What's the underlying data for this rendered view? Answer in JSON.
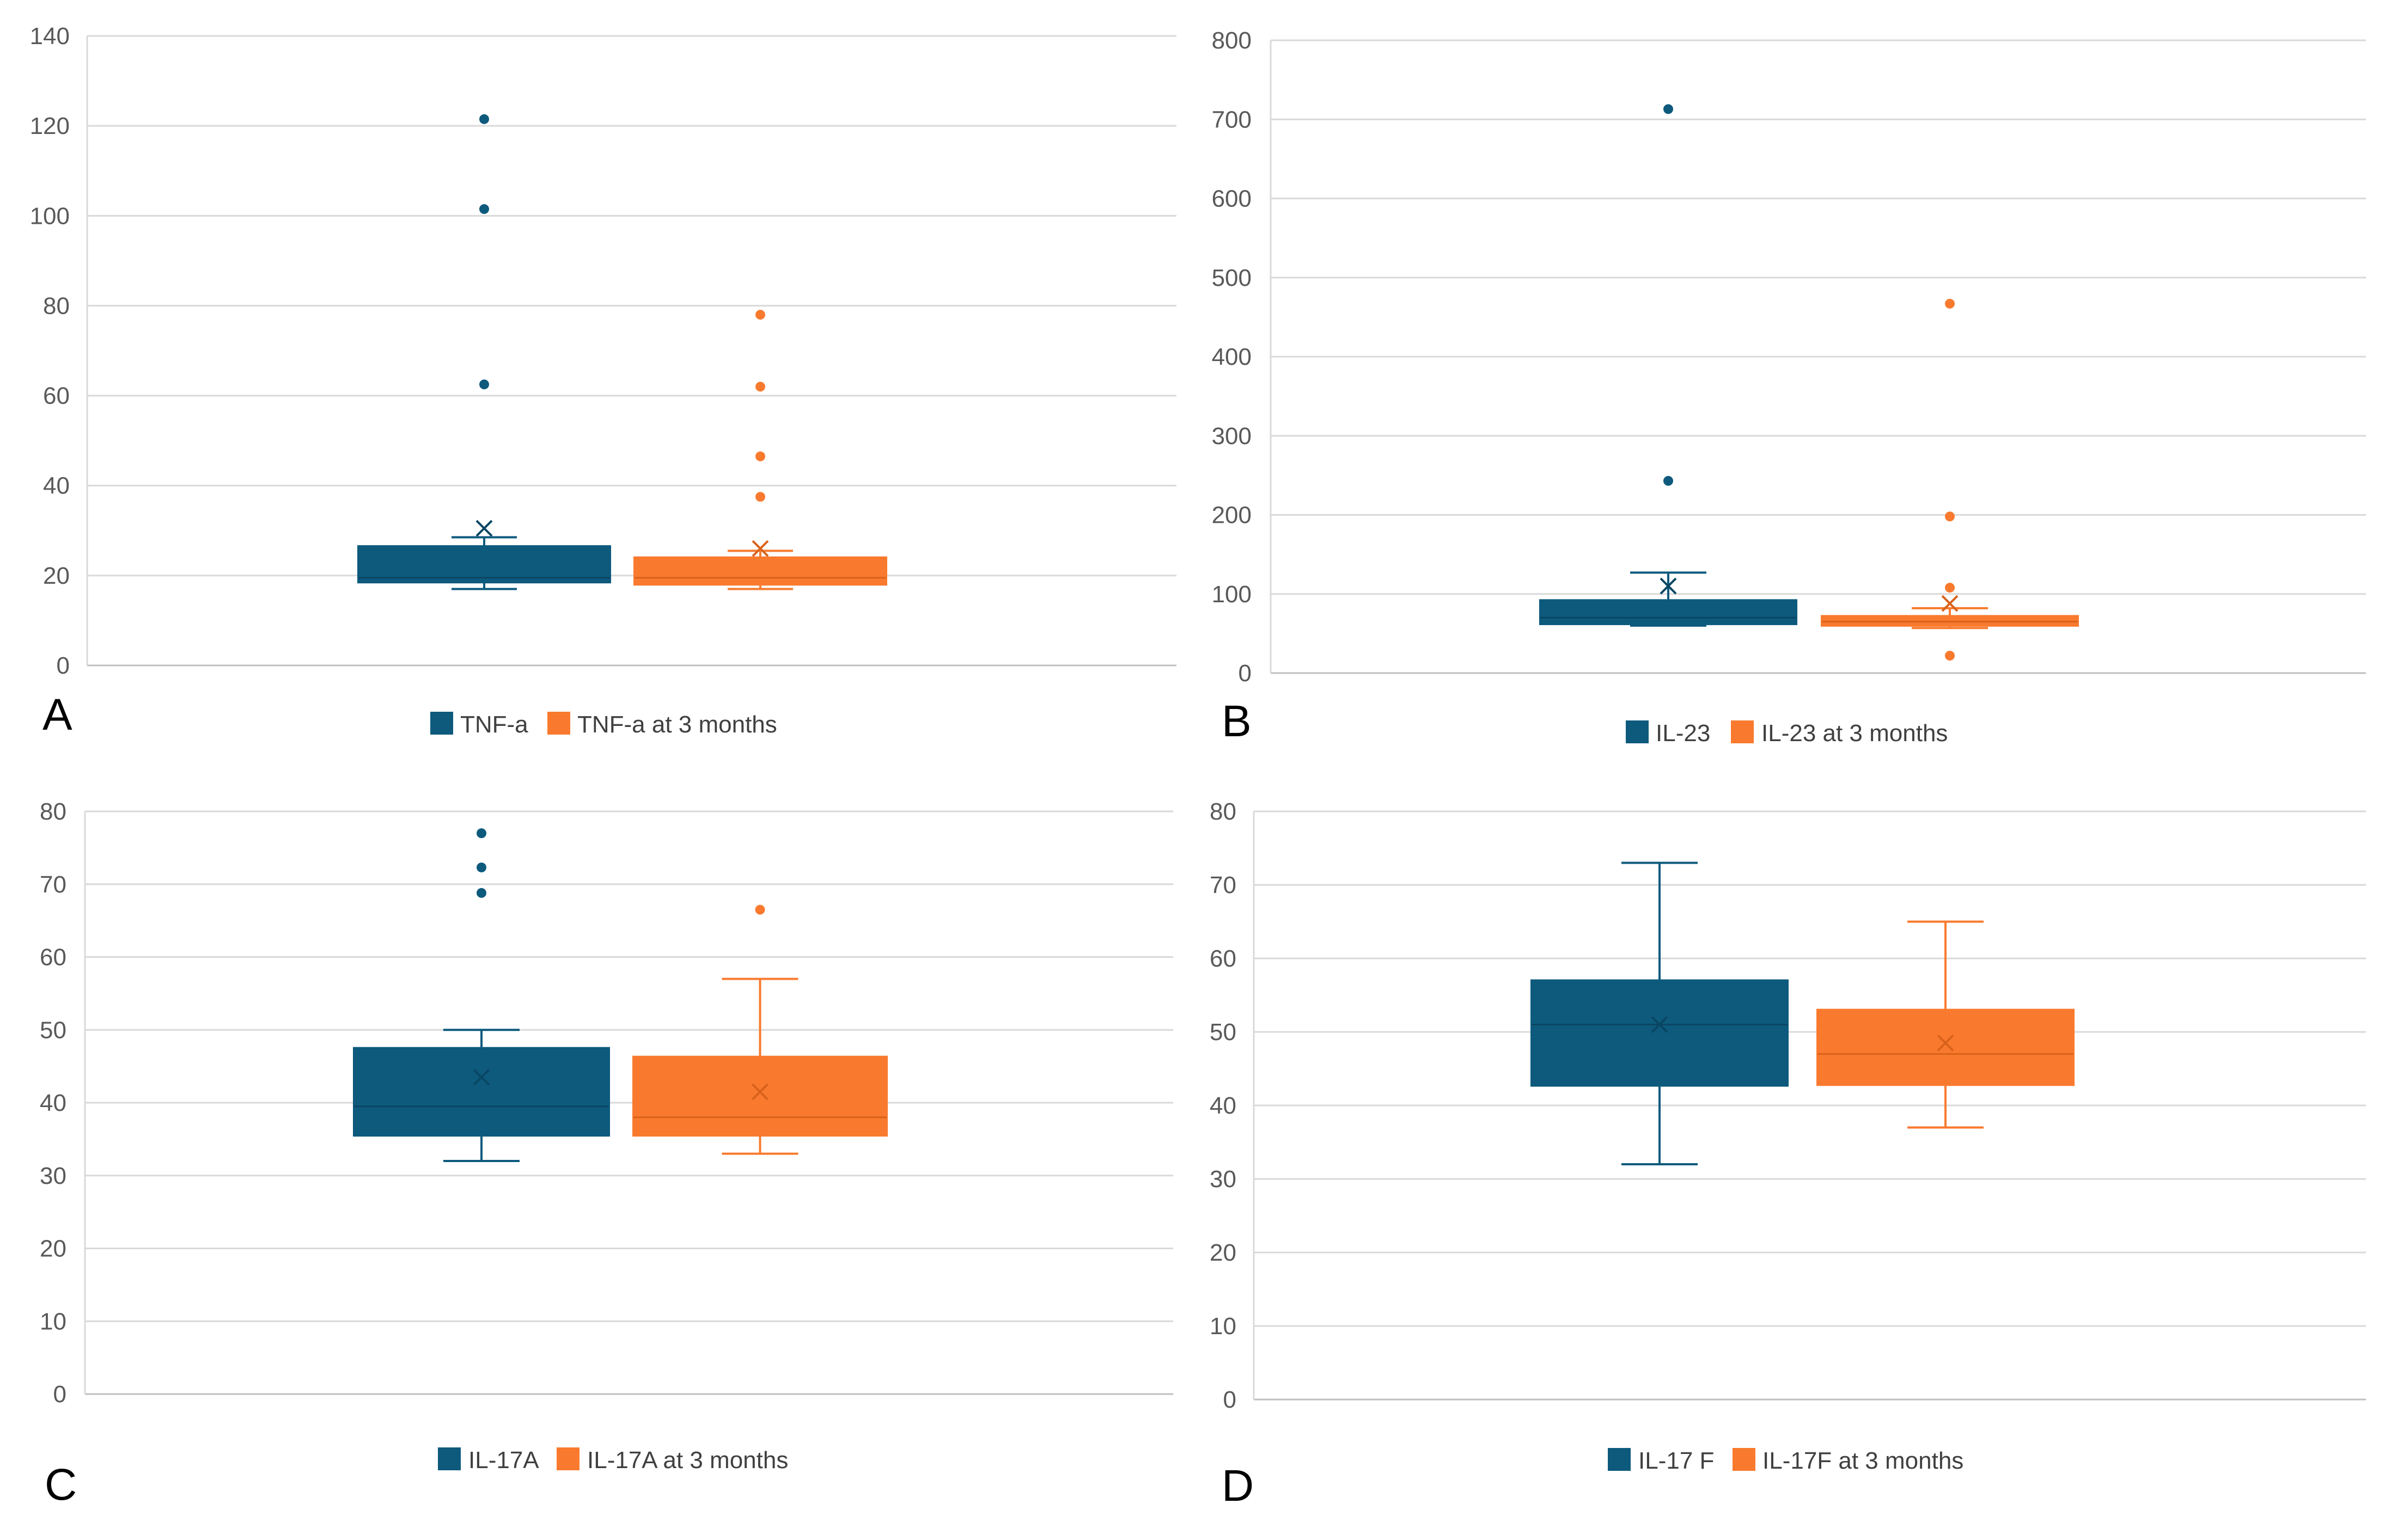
{
  "colors": {
    "series1": "#0d5a7d",
    "series2": "#f97a2e",
    "grid": "#d9d9d9",
    "axis": "#bfbfbf"
  },
  "chart_data": [
    {
      "panel": "A",
      "type": "box",
      "yticks": [
        "0",
        "20",
        "40",
        "60",
        "80",
        "100",
        "120",
        "140"
      ],
      "ylim": [
        0,
        140
      ],
      "series": [
        {
          "name": "TNF-a",
          "whisker_low": 17,
          "q1": 18.5,
          "median": 19.5,
          "q3": 26.5,
          "whisker_high": 28.5,
          "mean": 30.5,
          "outliers": [
            62.5,
            101.5,
            121.5
          ]
        },
        {
          "name": "TNF-a at 3 months",
          "whisker_low": 17,
          "q1": 18,
          "median": 19.5,
          "q3": 24,
          "whisker_high": 25.5,
          "mean": 26,
          "outliers": [
            37.5,
            46.5,
            62,
            78
          ]
        }
      ]
    },
    {
      "panel": "B",
      "type": "box",
      "yticks": [
        "0",
        "100",
        "200",
        "300",
        "400",
        "500",
        "600",
        "700",
        "800"
      ],
      "ylim": [
        0,
        800
      ],
      "series": [
        {
          "name": "IL-23",
          "whisker_low": 60,
          "q1": 62,
          "median": 70,
          "q3": 92,
          "whisker_high": 127,
          "mean": 110,
          "outliers": [
            243,
            713
          ]
        },
        {
          "name": "IL-23 at 3 months",
          "whisker_low": 57,
          "q1": 60,
          "median": 65,
          "q3": 72,
          "whisker_high": 82,
          "mean": 88,
          "outliers": [
            22,
            108,
            198,
            467
          ]
        }
      ]
    },
    {
      "panel": "C",
      "type": "box",
      "yticks": [
        "0",
        "10",
        "20",
        "30",
        "40",
        "50",
        "60",
        "70",
        "80"
      ],
      "ylim": [
        0,
        80
      ],
      "series": [
        {
          "name": "IL-17A",
          "whisker_low": 32,
          "q1": 35.5,
          "median": 39.5,
          "q3": 47.5,
          "whisker_high": 50,
          "mean": 43.5,
          "outliers": [
            68.8,
            72.3,
            77
          ]
        },
        {
          "name": "IL-17A at 3 months",
          "whisker_low": 33,
          "q1": 35.5,
          "median": 38,
          "q3": 46.3,
          "whisker_high": 57,
          "mean": 41.5,
          "outliers": [
            66.5
          ]
        }
      ]
    },
    {
      "panel": "D",
      "type": "box",
      "yticks": [
        "0",
        "10",
        "20",
        "30",
        "40",
        "50",
        "60",
        "70",
        "80"
      ],
      "ylim": [
        0,
        80
      ],
      "series": [
        {
          "name": "IL-17 F",
          "whisker_low": 32,
          "q1": 42.7,
          "median": 51,
          "q3": 57,
          "whisker_high": 73,
          "mean": 51,
          "outliers": []
        },
        {
          "name": "IL-17F at 3 months",
          "whisker_low": 37,
          "q1": 42.8,
          "median": 47,
          "q3": 53,
          "whisker_high": 65,
          "mean": 48.5,
          "outliers": []
        }
      ]
    }
  ]
}
